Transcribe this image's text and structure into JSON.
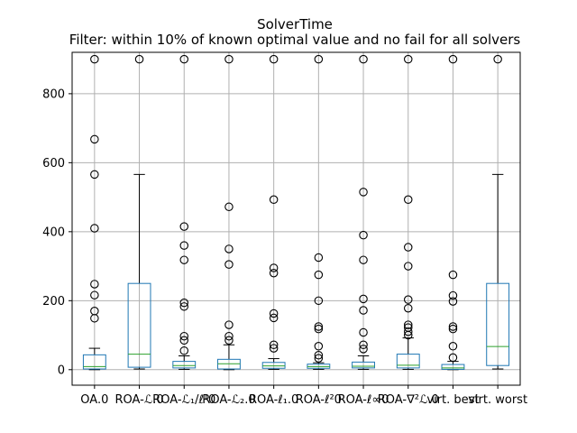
{
  "chart_data": {
    "type": "boxplot",
    "title": "SolverTime",
    "subtitle": "Filter: within 10% of known optimal value and no fail for all solvers",
    "xlabel": "",
    "ylabel": "",
    "ylim": [
      -45,
      920
    ],
    "yticks": [
      0,
      200,
      400,
      600,
      800
    ],
    "grid": true,
    "legend": "none",
    "colors": {
      "box": "#1f77b4",
      "median": "#2ca02c",
      "whisker": "#000000",
      "grid": "#b0b0b0",
      "flier": "#000000"
    },
    "categories": [
      "OA.0",
      "ROA-ℒ.0",
      "ROA-ℒ₁/ℓ¹0",
      "ROA-ℒ₂.0",
      "ROA-ℓ₁.0",
      "ROA-ℓ²0",
      "ROA-ℓ∞0",
      "ROA-∇²ℒ.0",
      "virt. best",
      "virt. worst"
    ],
    "boxes": [
      {
        "whislo": 0,
        "q1": 2,
        "med": 9,
        "q3": 43,
        "whishi": 62,
        "fliers": [
          149,
          170,
          216,
          248,
          410,
          566,
          668,
          900
        ]
      },
      {
        "whislo": 2,
        "q1": 7,
        "med": 45,
        "q3": 250,
        "whishi": 566,
        "fliers": [
          900
        ]
      },
      {
        "whislo": 1,
        "q1": 5,
        "med": 12,
        "q3": 24,
        "whishi": 40,
        "fliers": [
          55,
          85,
          97,
          183,
          194,
          318,
          360,
          415,
          900
        ]
      },
      {
        "whislo": 0,
        "q1": 2,
        "med": 17,
        "q3": 30,
        "whishi": 72,
        "fliers": [
          85,
          97,
          130,
          305,
          350,
          472,
          900
        ]
      },
      {
        "whislo": 1,
        "q1": 4,
        "med": 11,
        "q3": 21,
        "whishi": 32,
        "fliers": [
          62,
          72,
          150,
          163,
          280,
          295,
          493,
          900
        ]
      },
      {
        "whislo": 1,
        "q1": 4,
        "med": 9,
        "q3": 16,
        "whishi": 20,
        "fliers": [
          33,
          42,
          68,
          118,
          125,
          200,
          275,
          325,
          900
        ]
      },
      {
        "whislo": 1,
        "q1": 5,
        "med": 10,
        "q3": 22,
        "whishi": 40,
        "fliers": [
          60,
          72,
          108,
          172,
          205,
          318,
          390,
          515,
          900
        ]
      },
      {
        "whislo": 1,
        "q1": 5,
        "med": 13,
        "q3": 45,
        "whishi": 92,
        "fliers": [
          100,
          110,
          122,
          130,
          178,
          203,
          300,
          355,
          493,
          900
        ]
      },
      {
        "whislo": 0,
        "q1": 1,
        "med": 5,
        "q3": 15,
        "whishi": 24,
        "fliers": [
          35,
          68,
          118,
          125,
          198,
          215,
          275,
          900
        ]
      },
      {
        "whislo": 2,
        "q1": 12,
        "med": 67,
        "q3": 250,
        "whishi": 566,
        "fliers": [
          900
        ]
      }
    ]
  }
}
